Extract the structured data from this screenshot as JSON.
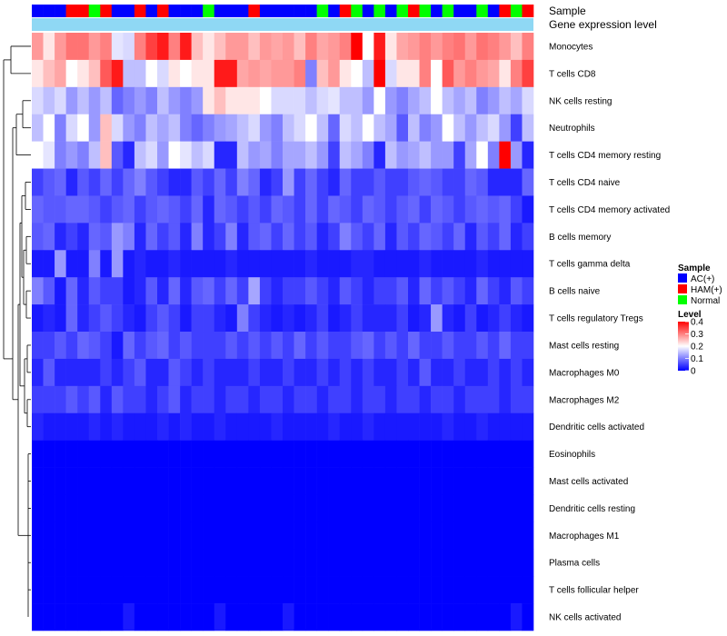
{
  "chart_data": {
    "type": "heatmap",
    "annotation_labels": [
      "Sample",
      "Gene expression level"
    ],
    "rows": [
      "Monocytes",
      "T cells CD8",
      "NK cells resting",
      "Neutrophils",
      "T cells CD4 memory resting",
      "T cells CD4 naive",
      "T cells CD4 memory activated",
      "B cells memory",
      "T cells gamma delta",
      "B cells naive",
      "T cells regulatory  Tregs",
      "Mast cells resting",
      "Macrophages M0",
      "Macrophages M2",
      "Dendritic cells activated",
      "Eosinophils",
      "Mast cells activated",
      "Dendritic cells resting",
      "Macrophages M1",
      "Plasma cells",
      "T cells follicular helper",
      "NK cells activated"
    ],
    "sample_groups": [
      "AC(+)",
      "AC(+)",
      "AC(+)",
      "HAM(+)",
      "HAM(+)",
      "Normal",
      "HAM(+)",
      "AC(+)",
      "AC(+)",
      "HAM(+)",
      "AC(+)",
      "HAM(+)",
      "AC(+)",
      "AC(+)",
      "AC(+)",
      "Normal",
      "AC(+)",
      "AC(+)",
      "AC(+)",
      "HAM(+)",
      "AC(+)",
      "AC(+)",
      "AC(+)",
      "AC(+)",
      "AC(+)",
      "Normal",
      "AC(+)",
      "HAM(+)",
      "Normal",
      "AC(+)",
      "Normal",
      "AC(+)",
      "Normal",
      "HAM(+)",
      "Normal",
      "AC(+)",
      "Normal",
      "AC(+)",
      "AC(+)",
      "Normal",
      "AC(+)",
      "HAM(+)",
      "Normal",
      "HAM(+)"
    ],
    "gene_expression_color": "#8fd8f4",
    "legend": {
      "sample_title": "Sample",
      "sample_entries": [
        {
          "label": "AC(+)",
          "color": "#0000ff"
        },
        {
          "label": "HAM(+)",
          "color": "#ff0000"
        },
        {
          "label": "Normal",
          "color": "#00ff00"
        }
      ],
      "level_title": "Level",
      "level_ticks": [
        "0.4",
        "0.3",
        "0.2",
        "0.1",
        "0"
      ],
      "level_range": [
        0,
        0.4
      ],
      "level_colors": {
        "low": "#0000ff",
        "mid": "#ffffff",
        "high": "#ff0000"
      }
    },
    "values": [
      [
        0.28,
        0.22,
        0.28,
        0.31,
        0.31,
        0.28,
        0.3,
        0.18,
        0.17,
        0.3,
        0.35,
        0.38,
        0.3,
        0.38,
        0.25,
        0.22,
        0.25,
        0.28,
        0.28,
        0.25,
        0.28,
        0.27,
        0.28,
        0.25,
        0.3,
        0.27,
        0.28,
        0.3,
        0.4,
        0.2,
        0.38,
        0.22,
        0.27,
        0.28,
        0.3,
        0.28,
        0.3,
        0.31,
        0.28,
        0.31,
        0.3,
        0.28,
        0.25,
        0.3
      ],
      [
        0.22,
        0.25,
        0.27,
        0.2,
        0.22,
        0.25,
        0.33,
        0.38,
        0.15,
        0.15,
        0.2,
        0.17,
        0.22,
        0.2,
        0.22,
        0.22,
        0.38,
        0.38,
        0.27,
        0.28,
        0.27,
        0.28,
        0.28,
        0.3,
        0.1,
        0.25,
        0.28,
        0.22,
        0.2,
        0.15,
        0.4,
        0.17,
        0.22,
        0.22,
        0.3,
        0.2,
        0.33,
        0.28,
        0.3,
        0.28,
        0.27,
        0.22,
        0.3,
        0.35
      ],
      [
        0.17,
        0.15,
        0.17,
        0.12,
        0.15,
        0.12,
        0.15,
        0.08,
        0.1,
        0.12,
        0.1,
        0.15,
        0.12,
        0.1,
        0.12,
        0.22,
        0.25,
        0.22,
        0.22,
        0.22,
        0.2,
        0.17,
        0.17,
        0.17,
        0.15,
        0.17,
        0.18,
        0.15,
        0.15,
        0.12,
        0.2,
        0.12,
        0.1,
        0.13,
        0.15,
        0.2,
        0.15,
        0.13,
        0.15,
        0.1,
        0.12,
        0.15,
        0.13,
        0.17
      ],
      [
        0.15,
        0.2,
        0.1,
        0.17,
        0.2,
        0.12,
        0.25,
        0.17,
        0.12,
        0.1,
        0.15,
        0.13,
        0.15,
        0.1,
        0.08,
        0.1,
        0.12,
        0.13,
        0.15,
        0.17,
        0.12,
        0.1,
        0.15,
        0.17,
        0.2,
        0.15,
        0.08,
        0.17,
        0.15,
        0.2,
        0.15,
        0.13,
        0.07,
        0.15,
        0.1,
        0.12,
        0.2,
        0.15,
        0.12,
        0.15,
        0.17,
        0.12,
        0.05,
        0.15
      ],
      [
        0.2,
        0.18,
        0.1,
        0.12,
        0.1,
        0.15,
        0.25,
        0.07,
        0.03,
        0.15,
        0.17,
        0.12,
        0.2,
        0.18,
        0.15,
        0.17,
        0.03,
        0.03,
        0.15,
        0.12,
        0.13,
        0.1,
        0.13,
        0.13,
        0.15,
        0.12,
        0.05,
        0.15,
        0.13,
        0.1,
        0.03,
        0.15,
        0.12,
        0.13,
        0.15,
        0.12,
        0.12,
        0.05,
        0.13,
        0.2,
        0.1,
        0.4,
        0.12,
        0.03
      ],
      [
        0.05,
        0.07,
        0.08,
        0.03,
        0.07,
        0.05,
        0.08,
        0.05,
        0.08,
        0.1,
        0.07,
        0.05,
        0.03,
        0.03,
        0.07,
        0.05,
        0.08,
        0.05,
        0.1,
        0.08,
        0.03,
        0.05,
        0.12,
        0.05,
        0.08,
        0.05,
        0.03,
        0.08,
        0.05,
        0.05,
        0.07,
        0.05,
        0.05,
        0.07,
        0.08,
        0.07,
        0.05,
        0.05,
        0.08,
        0.07,
        0.03,
        0.03,
        0.03,
        0.08
      ],
      [
        0.08,
        0.07,
        0.07,
        0.08,
        0.08,
        0.07,
        0.05,
        0.07,
        0.08,
        0.05,
        0.07,
        0.08,
        0.07,
        0.05,
        0.08,
        0.03,
        0.08,
        0.07,
        0.05,
        0.07,
        0.05,
        0.08,
        0.07,
        0.05,
        0.08,
        0.05,
        0.08,
        0.07,
        0.05,
        0.08,
        0.07,
        0.05,
        0.07,
        0.08,
        0.05,
        0.08,
        0.07,
        0.05,
        0.07,
        0.08,
        0.07,
        0.08,
        0.05,
        0.02
      ],
      [
        0.07,
        0.08,
        0.03,
        0.05,
        0.03,
        0.08,
        0.07,
        0.12,
        0.1,
        0.03,
        0.08,
        0.05,
        0.07,
        0.03,
        0.1,
        0.03,
        0.05,
        0.1,
        0.03,
        0.07,
        0.08,
        0.05,
        0.08,
        0.05,
        0.07,
        0.03,
        0.05,
        0.1,
        0.07,
        0.05,
        0.08,
        0.03,
        0.07,
        0.05,
        0.08,
        0.07,
        0.05,
        0.08,
        0.03,
        0.07,
        0.05,
        0.08,
        0.03,
        0.05
      ],
      [
        0.02,
        0.02,
        0.12,
        0.02,
        0.02,
        0.1,
        0.02,
        0.12,
        0.02,
        0.03,
        0.02,
        0.02,
        0.03,
        0.02,
        0.02,
        0.02,
        0.02,
        0.03,
        0.02,
        0.02,
        0.02,
        0.02,
        0.02,
        0.02,
        0.03,
        0.02,
        0.02,
        0.02,
        0.03,
        0.03,
        0.02,
        0.02,
        0.02,
        0.02,
        0.03,
        0.02,
        0.02,
        0.02,
        0.02,
        0.03,
        0.02,
        0.02,
        0.02,
        0.02
      ],
      [
        0.1,
        0.07,
        0.02,
        0.08,
        0.03,
        0.07,
        0.05,
        0.05,
        0.02,
        0.03,
        0.07,
        0.03,
        0.08,
        0.03,
        0.07,
        0.08,
        0.05,
        0.08,
        0.05,
        0.13,
        0.05,
        0.03,
        0.05,
        0.05,
        0.07,
        0.05,
        0.03,
        0.07,
        0.05,
        0.03,
        0.05,
        0.05,
        0.07,
        0.03,
        0.08,
        0.05,
        0.07,
        0.05,
        0.03,
        0.08,
        0.05,
        0.03,
        0.07,
        0.05
      ],
      [
        0.02,
        0.03,
        0.02,
        0.08,
        0.03,
        0.05,
        0.07,
        0.05,
        0.03,
        0.02,
        0.05,
        0.07,
        0.05,
        0.02,
        0.05,
        0.05,
        0.03,
        0.02,
        0.1,
        0.05,
        0.03,
        0.02,
        0.03,
        0.02,
        0.03,
        0.05,
        0.02,
        0.03,
        0.05,
        0.03,
        0.03,
        0.03,
        0.05,
        0.02,
        0.03,
        0.12,
        0.03,
        0.02,
        0.05,
        0.02,
        0.03,
        0.05,
        0.03,
        0.02
      ],
      [
        0.05,
        0.05,
        0.07,
        0.05,
        0.08,
        0.07,
        0.05,
        0.02,
        0.08,
        0.05,
        0.07,
        0.08,
        0.05,
        0.07,
        0.05,
        0.05,
        0.05,
        0.07,
        0.05,
        0.07,
        0.05,
        0.07,
        0.05,
        0.08,
        0.05,
        0.07,
        0.05,
        0.05,
        0.07,
        0.08,
        0.05,
        0.07,
        0.05,
        0.08,
        0.05,
        0.05,
        0.07,
        0.05,
        0.05,
        0.07,
        0.05,
        0.08,
        0.05,
        0.05
      ],
      [
        0.03,
        0.07,
        0.03,
        0.03,
        0.03,
        0.03,
        0.05,
        0.03,
        0.05,
        0.07,
        0.03,
        0.03,
        0.07,
        0.05,
        0.03,
        0.05,
        0.03,
        0.03,
        0.03,
        0.05,
        0.03,
        0.03,
        0.05,
        0.03,
        0.03,
        0.05,
        0.03,
        0.05,
        0.03,
        0.05,
        0.03,
        0.03,
        0.05,
        0.03,
        0.07,
        0.03,
        0.03,
        0.05,
        0.03,
        0.03,
        0.05,
        0.03,
        0.05,
        0.03
      ],
      [
        0.05,
        0.05,
        0.05,
        0.07,
        0.05,
        0.07,
        0.03,
        0.07,
        0.05,
        0.05,
        0.03,
        0.05,
        0.07,
        0.03,
        0.05,
        0.05,
        0.03,
        0.05,
        0.05,
        0.03,
        0.05,
        0.05,
        0.03,
        0.05,
        0.05,
        0.03,
        0.05,
        0.05,
        0.03,
        0.05,
        0.05,
        0.03,
        0.05,
        0.05,
        0.03,
        0.05,
        0.05,
        0.03,
        0.05,
        0.05,
        0.05,
        0.03,
        0.05,
        0.05
      ],
      [
        0.03,
        0.02,
        0.02,
        0.02,
        0.02,
        0.03,
        0.02,
        0.03,
        0.02,
        0.02,
        0.02,
        0.03,
        0.02,
        0.03,
        0.02,
        0.02,
        0.03,
        0.02,
        0.02,
        0.02,
        0.02,
        0.03,
        0.02,
        0.02,
        0.02,
        0.02,
        0.03,
        0.02,
        0.02,
        0.03,
        0.02,
        0.02,
        0.02,
        0.02,
        0.02,
        0.02,
        0.03,
        0.02,
        0.02,
        0.03,
        0.02,
        0.02,
        0.02,
        0.02
      ],
      [
        0,
        0,
        0,
        0,
        0,
        0,
        0,
        0,
        0,
        0,
        0,
        0,
        0,
        0,
        0,
        0,
        0,
        0,
        0,
        0,
        0,
        0,
        0,
        0,
        0,
        0,
        0,
        0,
        0,
        0,
        0,
        0,
        0,
        0,
        0,
        0,
        0,
        0,
        0,
        0,
        0,
        0,
        0,
        0
      ],
      [
        0,
        0,
        0,
        0,
        0,
        0,
        0,
        0,
        0,
        0,
        0,
        0,
        0,
        0,
        0,
        0,
        0,
        0,
        0,
        0,
        0,
        0,
        0,
        0,
        0,
        0,
        0,
        0,
        0,
        0,
        0,
        0,
        0,
        0,
        0,
        0,
        0,
        0,
        0,
        0,
        0,
        0,
        0,
        0
      ],
      [
        0,
        0,
        0,
        0,
        0,
        0,
        0,
        0,
        0,
        0,
        0,
        0,
        0,
        0,
        0,
        0,
        0,
        0,
        0,
        0,
        0,
        0,
        0,
        0,
        0,
        0,
        0,
        0,
        0,
        0,
        0,
        0,
        0,
        0,
        0,
        0,
        0,
        0,
        0,
        0,
        0,
        0,
        0,
        0
      ],
      [
        0,
        0,
        0,
        0,
        0,
        0,
        0,
        0,
        0,
        0,
        0,
        0,
        0,
        0,
        0,
        0,
        0,
        0,
        0,
        0,
        0,
        0,
        0,
        0,
        0,
        0,
        0,
        0,
        0,
        0,
        0,
        0,
        0,
        0,
        0,
        0,
        0,
        0,
        0,
        0,
        0,
        0,
        0,
        0
      ],
      [
        0,
        0,
        0,
        0,
        0,
        0,
        0,
        0,
        0,
        0,
        0,
        0,
        0,
        0,
        0,
        0,
        0,
        0,
        0,
        0,
        0,
        0,
        0,
        0,
        0,
        0,
        0,
        0,
        0,
        0,
        0,
        0,
        0,
        0,
        0,
        0,
        0,
        0,
        0,
        0,
        0,
        0,
        0,
        0
      ],
      [
        0,
        0,
        0,
        0,
        0,
        0,
        0,
        0,
        0,
        0,
        0,
        0,
        0,
        0,
        0,
        0,
        0,
        0,
        0,
        0,
        0,
        0,
        0,
        0,
        0,
        0,
        0,
        0,
        0,
        0,
        0,
        0,
        0,
        0,
        0,
        0,
        0,
        0,
        0,
        0,
        0,
        0,
        0,
        0
      ],
      [
        0,
        0,
        0,
        0,
        0,
        0,
        0,
        0,
        0.02,
        0,
        0,
        0,
        0,
        0,
        0,
        0,
        0.02,
        0,
        0,
        0,
        0,
        0,
        0.02,
        0,
        0,
        0,
        0,
        0,
        0,
        0,
        0,
        0,
        0,
        0,
        0,
        0,
        0,
        0,
        0,
        0,
        0,
        0,
        0.02,
        0
      ]
    ]
  }
}
